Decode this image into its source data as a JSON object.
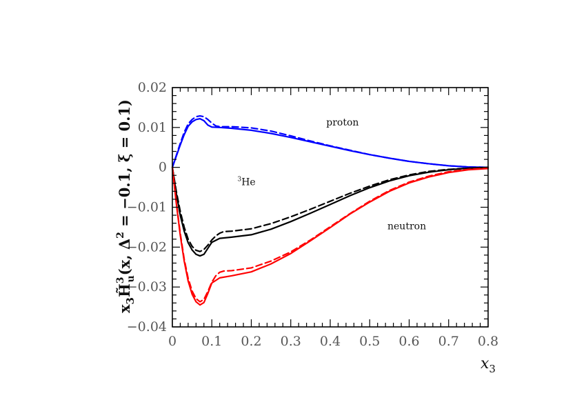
{
  "chart_data": {
    "type": "line",
    "title": "",
    "xlabel": "x",
    "xlabel_sub": "3",
    "ylabel_parts": {
      "x": "x",
      "x_sub": "3",
      "H": "H̃",
      "H_sup": "3",
      "H_sub": "u",
      "args": "(x, Δ",
      "args_sup": "2",
      "args_rest": " = −0.1, ξ = 0.1)"
    },
    "xlim": [
      0,
      0.8
    ],
    "ylim": [
      -0.04,
      0.02
    ],
    "xticks": [
      0,
      0.1,
      0.2,
      0.3,
      0.4,
      0.5,
      0.6,
      0.7,
      0.8
    ],
    "xtick_labels": [
      "0",
      "0.1",
      "0.2",
      "0.3",
      "0.4",
      "0.5",
      "0.6",
      "0.7",
      "0.8"
    ],
    "yticks": [
      0.02,
      0.01,
      0,
      -0.01,
      -0.02,
      -0.03,
      -0.04
    ],
    "ytick_labels": [
      "0.02",
      "0.01",
      "0",
      "−0.01",
      "−0.02",
      "−0.03",
      "−0.04"
    ],
    "grid": false,
    "annotations": [
      {
        "id": "proton",
        "text": "proton",
        "x": 0.39,
        "y": 0.0105
      },
      {
        "id": "he3",
        "text": "He",
        "sup": "3",
        "x": 0.165,
        "y": -0.0045
      },
      {
        "id": "neutron",
        "text": "neutron",
        "x": 0.545,
        "y": -0.0155
      }
    ],
    "series": [
      {
        "id": "proton-solid",
        "color": "#0000ff",
        "style": "solid",
        "x": [
          0,
          0.01,
          0.02,
          0.03,
          0.04,
          0.05,
          0.06,
          0.07,
          0.08,
          0.09,
          0.1,
          0.12,
          0.15,
          0.2,
          0.25,
          0.3,
          0.35,
          0.4,
          0.45,
          0.5,
          0.55,
          0.6,
          0.65,
          0.7,
          0.75,
          0.8
        ],
        "values": [
          0,
          0.0028,
          0.0056,
          0.0082,
          0.0103,
          0.0114,
          0.012,
          0.0122,
          0.0117,
          0.0106,
          0.0101,
          0.01,
          0.0098,
          0.0093,
          0.0085,
          0.0075,
          0.0064,
          0.0053,
          0.0042,
          0.0032,
          0.0023,
          0.0015,
          0.0009,
          0.0004,
          0.0001,
          0
        ]
      },
      {
        "id": "proton-dashed",
        "color": "#0000ff",
        "style": "dashed",
        "x": [
          0,
          0.01,
          0.02,
          0.03,
          0.04,
          0.05,
          0.06,
          0.07,
          0.08,
          0.09,
          0.1,
          0.11,
          0.12,
          0.15,
          0.2,
          0.25,
          0.3,
          0.35,
          0.4,
          0.45,
          0.5,
          0.55,
          0.6,
          0.65,
          0.7,
          0.75,
          0.8
        ],
        "values": [
          0,
          0.003,
          0.006,
          0.0088,
          0.0109,
          0.012,
          0.0127,
          0.0129,
          0.0127,
          0.012,
          0.0111,
          0.0104,
          0.0102,
          0.0102,
          0.0099,
          0.0091,
          0.0079,
          0.0066,
          0.0054,
          0.0043,
          0.0032,
          0.0023,
          0.0015,
          0.0009,
          0.0004,
          0.0001,
          0
        ]
      },
      {
        "id": "he3-solid",
        "color": "#000000",
        "style": "solid",
        "x": [
          0,
          0.01,
          0.02,
          0.03,
          0.04,
          0.05,
          0.06,
          0.07,
          0.08,
          0.09,
          0.1,
          0.12,
          0.15,
          0.2,
          0.25,
          0.3,
          0.35,
          0.4,
          0.45,
          0.5,
          0.55,
          0.6,
          0.65,
          0.7,
          0.75,
          0.8
        ],
        "values": [
          0,
          -0.0065,
          -0.012,
          -0.016,
          -0.0189,
          -0.0207,
          -0.0218,
          -0.0222,
          -0.0218,
          -0.0203,
          -0.0188,
          -0.0178,
          -0.0175,
          -0.0169,
          -0.0155,
          -0.0136,
          -0.0115,
          -0.0093,
          -0.0071,
          -0.0051,
          -0.0034,
          -0.0021,
          -0.0012,
          -0.0006,
          -0.0002,
          0
        ]
      },
      {
        "id": "he3-dashed",
        "color": "#000000",
        "style": "dashed",
        "x": [
          0,
          0.01,
          0.02,
          0.03,
          0.04,
          0.05,
          0.06,
          0.07,
          0.08,
          0.09,
          0.1,
          0.11,
          0.12,
          0.13,
          0.15,
          0.2,
          0.25,
          0.3,
          0.35,
          0.4,
          0.45,
          0.5,
          0.55,
          0.6,
          0.65,
          0.7,
          0.75,
          0.8
        ],
        "values": [
          0,
          -0.006,
          -0.011,
          -0.015,
          -0.018,
          -0.0198,
          -0.0208,
          -0.0211,
          -0.0206,
          -0.0195,
          -0.0182,
          -0.0172,
          -0.0165,
          -0.0161,
          -0.016,
          -0.0154,
          -0.0141,
          -0.0124,
          -0.0105,
          -0.0085,
          -0.0065,
          -0.0047,
          -0.0031,
          -0.0019,
          -0.001,
          -0.0005,
          -0.0002,
          0
        ]
      },
      {
        "id": "neutron-solid",
        "color": "#ff0000",
        "style": "solid",
        "x": [
          0,
          0.01,
          0.02,
          0.03,
          0.04,
          0.05,
          0.06,
          0.07,
          0.08,
          0.09,
          0.1,
          0.12,
          0.15,
          0.2,
          0.25,
          0.3,
          0.35,
          0.4,
          0.45,
          0.5,
          0.55,
          0.6,
          0.65,
          0.7,
          0.75,
          0.8
        ],
        "values": [
          0,
          -0.009,
          -0.017,
          -0.0235,
          -0.0285,
          -0.0318,
          -0.0337,
          -0.0345,
          -0.0339,
          -0.0316,
          -0.029,
          -0.0277,
          -0.0272,
          -0.0262,
          -0.0242,
          -0.0216,
          -0.0184,
          -0.0151,
          -0.0117,
          -0.0087,
          -0.006,
          -0.0039,
          -0.0024,
          -0.0013,
          -0.0006,
          -0.0003
        ]
      },
      {
        "id": "neutron-dashed",
        "color": "#ff0000",
        "style": "dashed",
        "x": [
          0,
          0.01,
          0.02,
          0.03,
          0.04,
          0.05,
          0.06,
          0.07,
          0.08,
          0.09,
          0.1,
          0.11,
          0.12,
          0.13,
          0.15,
          0.2,
          0.25,
          0.3,
          0.35,
          0.4,
          0.45,
          0.5,
          0.55,
          0.6,
          0.65,
          0.7,
          0.75,
          0.8
        ],
        "values": [
          0,
          -0.0088,
          -0.0165,
          -0.023,
          -0.0278,
          -0.031,
          -0.0329,
          -0.0337,
          -0.0331,
          -0.0311,
          -0.0288,
          -0.0272,
          -0.0263,
          -0.026,
          -0.0259,
          -0.0252,
          -0.0235,
          -0.0212,
          -0.0182,
          -0.0149,
          -0.0116,
          -0.0085,
          -0.0058,
          -0.0037,
          -0.0022,
          -0.0011,
          -0.0005,
          -0.0002
        ]
      }
    ]
  }
}
